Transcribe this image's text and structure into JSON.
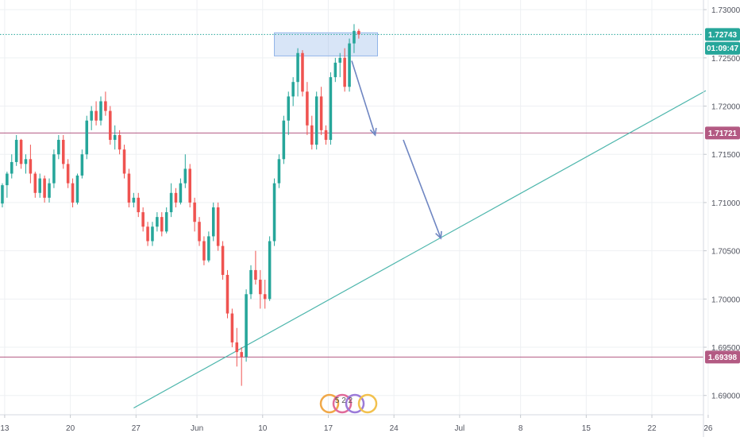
{
  "chart_data": {
    "type": "candlestick",
    "price_axis": {
      "ylim": [
        1.688,
        1.731
      ],
      "ticks": [
        "1.73000",
        "1.72500",
        "1.72000",
        "1.71500",
        "1.71000",
        "1.70500",
        "1.70000",
        "1.69500",
        "1.69000"
      ],
      "tick_values": [
        1.73,
        1.725,
        1.72,
        1.715,
        1.71,
        1.705,
        1.7,
        1.695,
        1.69
      ]
    },
    "time_axis": {
      "bar_range": [
        0,
        150
      ],
      "ticks": [
        "13",
        "20",
        "27",
        "Jun",
        "10",
        "17",
        "24",
        "Jul",
        "8",
        "15",
        "22",
        "26"
      ],
      "tick_bars": [
        1,
        15,
        29,
        42,
        56,
        70,
        84,
        98,
        111,
        125,
        139,
        151
      ]
    },
    "price_labels": [
      {
        "id": "current-price",
        "text": "1.72743",
        "value": 1.72743,
        "color": "#26a69a"
      },
      {
        "id": "countdown",
        "text": "01:09:47",
        "value": 1.726,
        "color": "#26a69a"
      },
      {
        "id": "resistance-upper",
        "text": "1.71721",
        "value": 1.71721,
        "color": "#b35a83"
      },
      {
        "id": "support-lower",
        "text": "1.69398",
        "value": 1.69398,
        "color": "#b35a83"
      }
    ],
    "horizontal_lines": [
      {
        "value": 1.72743,
        "style": "dotted",
        "color": "#26a69a"
      },
      {
        "value": 1.71721,
        "style": "solid",
        "color": "#b35a83"
      },
      {
        "value": 1.69398,
        "style": "solid",
        "color": "#b35a83"
      }
    ],
    "trendline": {
      "from": [
        28.5,
        1.6887
      ],
      "to": [
        150.5,
        1.7216
      ],
      "color": "#4db6ac"
    },
    "zone": {
      "bar_from": 58.5,
      "bar_to": 80.5,
      "price_top": 1.7276,
      "price_bottom": 1.7252,
      "color": "#90b4e8"
    },
    "arrows": [
      {
        "from": [
          75,
          1.7247
        ],
        "to": [
          80,
          1.717
        ],
        "color": "#6f86c2"
      },
      {
        "from": [
          86,
          1.7165
        ],
        "to": [
          94,
          1.7063
        ],
        "color": "#6f86c2"
      }
    ],
    "logo_text": "5 2 2",
    "colors": {
      "up": "#26a69a",
      "down": "#ef5350",
      "grid": "#eef0f3"
    },
    "ohlc": [
      [
        1.7099,
        1.712,
        1.7095,
        1.7118
      ],
      [
        1.7118,
        1.7132,
        1.7105,
        1.713
      ],
      [
        1.713,
        1.715,
        1.7125,
        1.7142
      ],
      [
        1.7142,
        1.717,
        1.7138,
        1.7165
      ],
      [
        1.7165,
        1.7166,
        1.7135,
        1.714
      ],
      [
        1.714,
        1.715,
        1.713,
        1.7145
      ],
      [
        1.7145,
        1.716,
        1.712,
        1.713
      ],
      [
        1.713,
        1.7132,
        1.7105,
        1.711
      ],
      [
        1.711,
        1.713,
        1.7105,
        1.7125
      ],
      [
        1.7125,
        1.7128,
        1.71,
        1.7105
      ],
      [
        1.7105,
        1.7125,
        1.71,
        1.712
      ],
      [
        1.712,
        1.7155,
        1.7115,
        1.715
      ],
      [
        1.715,
        1.717,
        1.7145,
        1.7165
      ],
      [
        1.7165,
        1.717,
        1.7135,
        1.714
      ],
      [
        1.714,
        1.7145,
        1.7115,
        1.712
      ],
      [
        1.712,
        1.7125,
        1.7095,
        1.71
      ],
      [
        1.71,
        1.713,
        1.7098,
        1.7128
      ],
      [
        1.7128,
        1.7155,
        1.7125,
        1.715
      ],
      [
        1.715,
        1.719,
        1.7145,
        1.7185
      ],
      [
        1.7185,
        1.72,
        1.7175,
        1.7195
      ],
      [
        1.7195,
        1.7205,
        1.718,
        1.7185
      ],
      [
        1.7185,
        1.721,
        1.718,
        1.7205
      ],
      [
        1.7205,
        1.7215,
        1.719,
        1.7195
      ],
      [
        1.7195,
        1.72,
        1.716,
        1.7165
      ],
      [
        1.7165,
        1.718,
        1.7155,
        1.717
      ],
      [
        1.717,
        1.7175,
        1.715,
        1.7155
      ],
      [
        1.7155,
        1.716,
        1.7125,
        1.713
      ],
      [
        1.713,
        1.7135,
        1.7095,
        1.71
      ],
      [
        1.71,
        1.711,
        1.7095,
        1.7105
      ],
      [
        1.7105,
        1.711,
        1.7085,
        1.709
      ],
      [
        1.709,
        1.7095,
        1.707,
        1.7075
      ],
      [
        1.7075,
        1.708,
        1.7055,
        1.706
      ],
      [
        1.706,
        1.708,
        1.7055,
        1.7075
      ],
      [
        1.7075,
        1.709,
        1.707,
        1.7085
      ],
      [
        1.7085,
        1.709,
        1.7065,
        1.707
      ],
      [
        1.707,
        1.7095,
        1.7068,
        1.709
      ],
      [
        1.709,
        1.712,
        1.7085,
        1.711
      ],
      [
        1.711,
        1.7115,
        1.7095,
        1.71
      ],
      [
        1.71,
        1.7125,
        1.7098,
        1.712
      ],
      [
        1.712,
        1.715,
        1.7115,
        1.7135
      ],
      [
        1.7135,
        1.714,
        1.7095,
        1.71
      ],
      [
        1.71,
        1.7105,
        1.707,
        1.708
      ],
      [
        1.708,
        1.7085,
        1.7055,
        1.706
      ],
      [
        1.706,
        1.7065,
        1.7035,
        1.704
      ],
      [
        1.704,
        1.707,
        1.7038,
        1.7065
      ],
      [
        1.7065,
        1.71,
        1.706,
        1.7095
      ],
      [
        1.7095,
        1.71,
        1.705,
        1.7055
      ],
      [
        1.7055,
        1.706,
        1.702,
        1.7025
      ],
      [
        1.7025,
        1.703,
        1.698,
        1.6985
      ],
      [
        1.6985,
        1.699,
        1.695,
        1.6955
      ],
      [
        1.6955,
        1.697,
        1.693,
        1.6945
      ],
      [
        1.6945,
        1.695,
        1.691,
        1.694
      ],
      [
        1.694,
        1.701,
        1.6935,
        1.7005
      ],
      [
        1.7005,
        1.7035,
        1.7,
        1.703
      ],
      [
        1.703,
        1.705,
        1.7015,
        1.702
      ],
      [
        1.702,
        1.703,
        1.699,
        1.7005
      ],
      [
        1.7005,
        1.702,
        1.699,
        1.7
      ],
      [
        1.7,
        1.7065,
        1.6998,
        1.706
      ],
      [
        1.706,
        1.7125,
        1.7055,
        1.712
      ],
      [
        1.712,
        1.715,
        1.7115,
        1.7145
      ],
      [
        1.7145,
        1.719,
        1.714,
        1.7185
      ],
      [
        1.7185,
        1.7215,
        1.717,
        1.721
      ],
      [
        1.721,
        1.723,
        1.72,
        1.7225
      ],
      [
        1.7225,
        1.726,
        1.721,
        1.7255
      ],
      [
        1.7255,
        1.7258,
        1.721,
        1.7215
      ],
      [
        1.7215,
        1.7225,
        1.717,
        1.718
      ],
      [
        1.718,
        1.719,
        1.7155,
        1.716
      ],
      [
        1.716,
        1.7215,
        1.7155,
        1.721
      ],
      [
        1.721,
        1.722,
        1.717,
        1.7175
      ],
      [
        1.7175,
        1.718,
        1.716,
        1.7165
      ],
      [
        1.7165,
        1.7235,
        1.716,
        1.723
      ],
      [
        1.723,
        1.725,
        1.7225,
        1.7245
      ],
      [
        1.7245,
        1.7255,
        1.723,
        1.725
      ],
      [
        1.725,
        1.726,
        1.7215,
        1.722
      ],
      [
        1.722,
        1.727,
        1.7215,
        1.7265
      ],
      [
        1.7265,
        1.7285,
        1.7255,
        1.7278
      ],
      [
        1.7278,
        1.728,
        1.727,
        1.72743
      ]
    ]
  }
}
